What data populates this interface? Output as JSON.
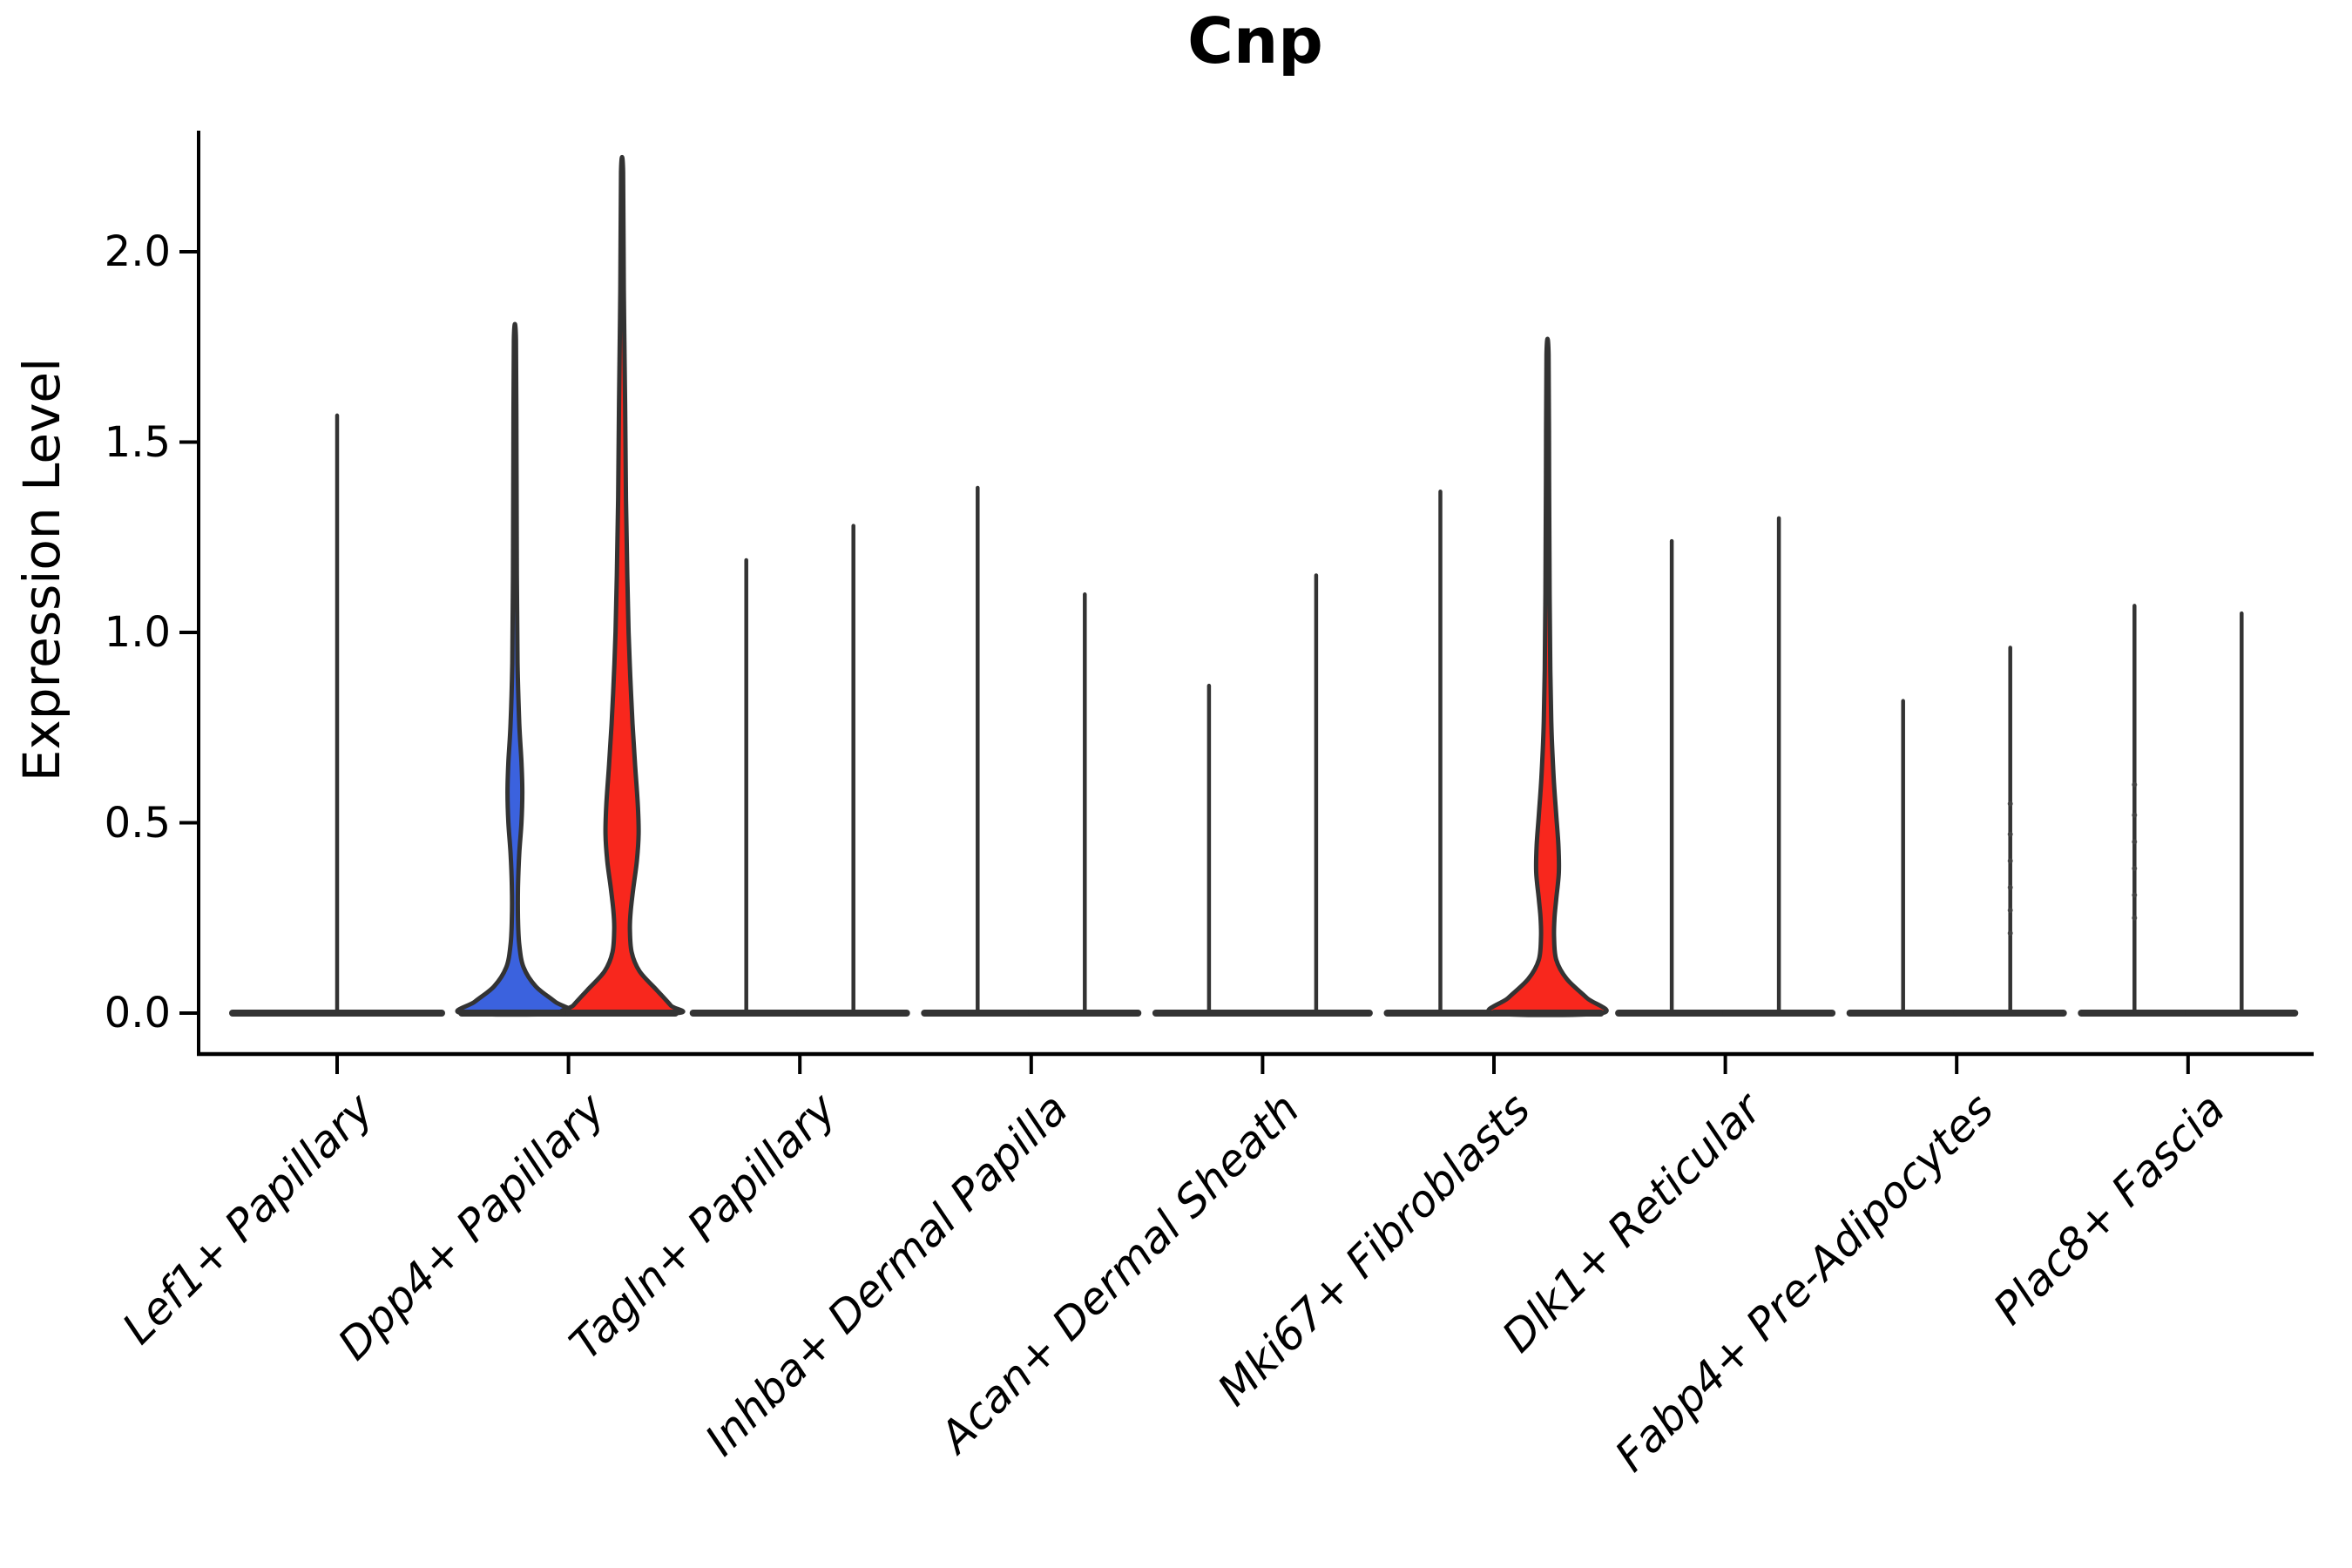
{
  "chart_data": {
    "type": "violin",
    "title": "Cnp",
    "ylabel": "Expression Level",
    "xlabel": "",
    "ylim": [
      0,
      2.32
    ],
    "grid": false,
    "legend": "none",
    "ytick_labels": [
      "0.0",
      "0.5",
      "1.0",
      "1.5",
      "2.0"
    ],
    "ytick_values": [
      0.0,
      0.5,
      1.0,
      1.5,
      2.0
    ],
    "categories": [
      "Lef1+ Papillary",
      "Dpp4+ Papillary",
      "Tagln+ Papillary",
      "Inhba+ Dermal Papilla",
      "Acan+ Dermal Sheath",
      "Mki67+ Fibroblasts",
      "Dlk1+ Reticular",
      "Fabp4+ Pre-Adipocytes",
      "Plac8+ Fascia"
    ],
    "palette": {
      "blue": "#3B62DE",
      "red": "#F8271D",
      "outline": "#333333",
      "axis": "#000000"
    },
    "note": "Most violins collapse to a flat base at 0 with a thin density spike to the max expression value; halfwidth profiles are [expression_value, halfwidth_px] pairs.",
    "violins": [
      {
        "category": 0,
        "slot": "full",
        "type": "spike",
        "fill": null,
        "max": 1.57
      },
      {
        "category": 1,
        "slot": "left",
        "type": "shaped",
        "fill": "blue",
        "max": 1.77,
        "profile": [
          [
            1.77,
            1.2
          ],
          [
            1.45,
            1.8
          ],
          [
            1.15,
            2.2
          ],
          [
            0.92,
            3
          ],
          [
            0.76,
            5
          ],
          [
            0.66,
            7.5
          ],
          [
            0.58,
            8.5
          ],
          [
            0.5,
            7.5
          ],
          [
            0.42,
            5
          ],
          [
            0.33,
            3.5
          ],
          [
            0.25,
            3.5
          ],
          [
            0.18,
            5
          ],
          [
            0.12,
            10
          ],
          [
            0.07,
            24
          ],
          [
            0.03,
            46
          ],
          [
            0.0,
            60
          ]
        ]
      },
      {
        "category": 1,
        "slot": "right",
        "type": "shaped",
        "fill": "red",
        "max": 2.21,
        "profile": [
          [
            2.21,
            1.2
          ],
          [
            1.9,
            2
          ],
          [
            1.6,
            3.5
          ],
          [
            1.35,
            4.5
          ],
          [
            1.15,
            6
          ],
          [
            1.0,
            7.5
          ],
          [
            0.88,
            9.5
          ],
          [
            0.76,
            12
          ],
          [
            0.65,
            15
          ],
          [
            0.55,
            18
          ],
          [
            0.47,
            19
          ],
          [
            0.4,
            17
          ],
          [
            0.33,
            13
          ],
          [
            0.27,
            10
          ],
          [
            0.22,
            9
          ],
          [
            0.16,
            11
          ],
          [
            0.11,
            20
          ],
          [
            0.06,
            40
          ],
          [
            0.02,
            56
          ],
          [
            0.0,
            62
          ]
        ]
      },
      {
        "category": 2,
        "slot": "left",
        "type": "spike",
        "fill": null,
        "max": 1.19
      },
      {
        "category": 2,
        "slot": "right",
        "type": "spike",
        "fill": null,
        "max": 1.28
      },
      {
        "category": 3,
        "slot": "left",
        "type": "spike",
        "fill": null,
        "max": 1.38
      },
      {
        "category": 3,
        "slot": "right",
        "type": "spike",
        "fill": null,
        "max": 1.1
      },
      {
        "category": 4,
        "slot": "left",
        "type": "spike",
        "fill": null,
        "max": 0.86
      },
      {
        "category": 4,
        "slot": "right",
        "type": "spike",
        "fill": null,
        "max": 1.15
      },
      {
        "category": 5,
        "slot": "left",
        "type": "spike",
        "fill": null,
        "max": 1.37
      },
      {
        "category": 5,
        "slot": "right",
        "type": "shaped",
        "fill": "red",
        "max": 1.73,
        "profile": [
          [
            1.73,
            1.2
          ],
          [
            1.4,
            1.8
          ],
          [
            1.1,
            2.4
          ],
          [
            0.9,
            3.2
          ],
          [
            0.75,
            4.5
          ],
          [
            0.62,
            7
          ],
          [
            0.52,
            10
          ],
          [
            0.44,
            12.5
          ],
          [
            0.37,
            13
          ],
          [
            0.3,
            10
          ],
          [
            0.25,
            8
          ],
          [
            0.2,
            7.5
          ],
          [
            0.14,
            10
          ],
          [
            0.09,
            22
          ],
          [
            0.04,
            45
          ],
          [
            0.0,
            62
          ]
        ]
      },
      {
        "category": 6,
        "slot": "left",
        "type": "spike",
        "fill": null,
        "max": 1.24
      },
      {
        "category": 6,
        "slot": "right",
        "type": "spike",
        "fill": null,
        "max": 1.3
      },
      {
        "category": 7,
        "slot": "left",
        "type": "spike",
        "fill": null,
        "max": 0.82
      },
      {
        "category": 7,
        "slot": "right",
        "type": "spike",
        "fill": null,
        "max": 0.96,
        "dots": [
          0.55,
          0.47,
          0.4,
          0.33,
          0.27,
          0.21
        ]
      },
      {
        "category": 8,
        "slot": "left",
        "type": "spike",
        "fill": null,
        "max": 1.07,
        "dots": [
          0.6,
          0.52,
          0.45,
          0.38,
          0.31,
          0.25
        ]
      },
      {
        "category": 8,
        "slot": "right",
        "type": "spike",
        "fill": null,
        "max": 1.05
      }
    ]
  }
}
